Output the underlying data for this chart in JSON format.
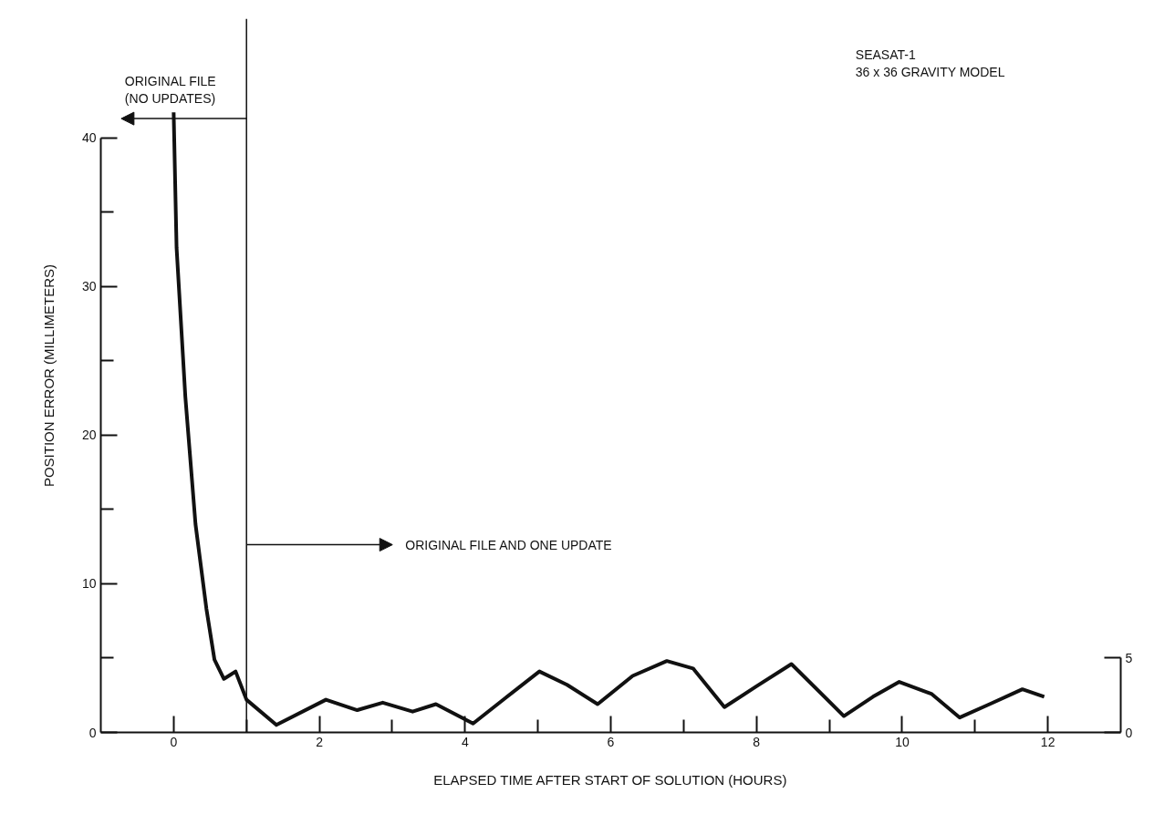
{
  "chart_data": {
    "type": "line",
    "xlabel": "ELAPSED TIME AFTER START OF SOLUTION (HOURS)",
    "ylabel": "POSITION ERROR (MILLIMETERS)",
    "x": [
      0,
      0.04,
      0.16,
      0.3,
      0.45,
      0.56,
      0.69,
      0.85,
      1.0,
      1.41,
      2.09,
      2.52,
      2.87,
      3.28,
      3.6,
      4.11,
      4.55,
      5.02,
      5.4,
      5.82,
      6.3,
      6.77,
      7.13,
      7.56,
      8.0,
      8.48,
      9.2,
      9.6,
      9.96,
      10.4,
      10.79,
      11.2,
      11.65,
      11.95
    ],
    "values": [
      41.7,
      32.6,
      22.6,
      14,
      8.3,
      4.9,
      3.6,
      4.1,
      2.2,
      0.5,
      2.2,
      1.5,
      2.0,
      1.4,
      1.9,
      0.6,
      2.3,
      4.1,
      3.2,
      1.9,
      3.8,
      4.8,
      4.3,
      1.7,
      3.1,
      4.6,
      1.1,
      2.4,
      3.4,
      2.6,
      1.0,
      1.9,
      2.9,
      2.4
    ],
    "color": "#111111",
    "xlim": [
      -1,
      13
    ],
    "ylim": [
      0,
      48
    ],
    "y2lim": [
      0,
      48
    ],
    "xticks": [
      0,
      {
        "value": 1,
        "label": null
      },
      2,
      {
        "value": 3,
        "label": null
      },
      4,
      {
        "value": 5,
        "label": null
      },
      6,
      {
        "value": 7,
        "label": null
      },
      8,
      {
        "value": 9,
        "label": null
      },
      10,
      {
        "value": 11,
        "label": null
      },
      12
    ],
    "yticks": [
      0,
      {
        "value": 5,
        "label": null
      },
      10,
      {
        "value": 15,
        "label": null
      },
      20,
      {
        "value": 25,
        "label": null
      },
      30,
      {
        "value": 35,
        "label": null
      },
      40
    ],
    "y2ticks": [
      0,
      5
    ],
    "ref_lines": [
      {
        "axis": "x",
        "value": 1,
        "color": "#111111"
      }
    ],
    "annotations": [
      "ORIGINAL FILE\n(NO UPDATES)",
      "ORIGINAL FILE AND ONE UPDATE",
      "SEASAT-1\n36 x 36 GRAVITY MODEL"
    ],
    "grid": false,
    "marker": "none",
    "line_style": "solid"
  }
}
